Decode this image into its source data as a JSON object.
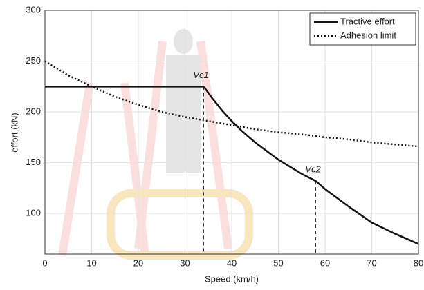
{
  "chart_data": {
    "type": "line",
    "x_label": "Speed (km/h)",
    "y_label": "effort (kN)",
    "xlim": [
      0,
      80
    ],
    "ylim": [
      60,
      300
    ],
    "xticks": [
      0,
      10,
      20,
      30,
      40,
      50,
      60,
      70,
      80
    ],
    "yticks": [
      100,
      150,
      200,
      250,
      300
    ],
    "grid": true,
    "legend": "upper right",
    "series": [
      {
        "name": "Tractive effort",
        "color": "#111111",
        "style": "solid",
        "x": [
          0,
          34,
          36,
          38,
          40,
          42,
          45,
          50,
          55,
          58,
          60,
          65,
          70,
          75,
          80
        ],
        "values": [
          225,
          225,
          212.5,
          201,
          191,
          182,
          170,
          153,
          139,
          132,
          124,
          107,
          91,
          80,
          70
        ]
      },
      {
        "name": "Adhesion limit",
        "color": "#111111",
        "style": "dotted",
        "x": [
          0,
          5,
          10,
          15,
          20,
          25,
          30,
          35,
          40,
          45,
          50,
          55,
          60,
          65,
          70,
          75,
          80
        ],
        "values": [
          250,
          236,
          225,
          215,
          207,
          200,
          195,
          191,
          187,
          183,
          180,
          178,
          175,
          173,
          170,
          168,
          166
        ]
      }
    ],
    "annotations": [
      {
        "label": "Vc1",
        "x": 34,
        "y": 225
      },
      {
        "label": "Vc2",
        "x": 58,
        "y": 132
      }
    ]
  }
}
